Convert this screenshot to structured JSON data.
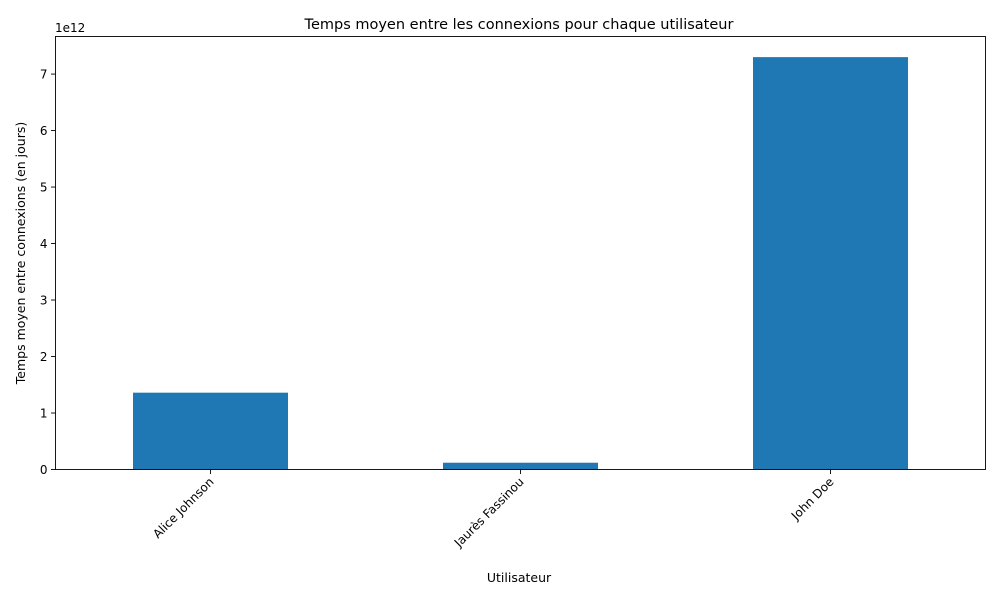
{
  "chart_data": {
    "type": "bar",
    "title": "Temps moyen entre les connexions pour chaque utilisateur",
    "xlabel": "Utilisateur",
    "ylabel": "Temps moyen entre connexions (en jours)",
    "offset_label": "1e12",
    "categories": [
      "Alice Johnson",
      "Jaurès Fassinou",
      "John Doe"
    ],
    "values": [
      1360000000000.0,
      120000000000.0,
      7300000000000.0
    ],
    "ylim": [
      0,
      7665000000000.0
    ],
    "yticks": [
      0,
      1000000000000.0,
      2000000000000.0,
      3000000000000.0,
      4000000000000.0,
      5000000000000.0,
      6000000000000.0,
      7000000000000.0
    ],
    "ytick_labels": [
      "0",
      "1",
      "2",
      "3",
      "4",
      "5",
      "6",
      "7"
    ],
    "bar_color": "#1f77b4",
    "grid": false,
    "legend": false
  }
}
